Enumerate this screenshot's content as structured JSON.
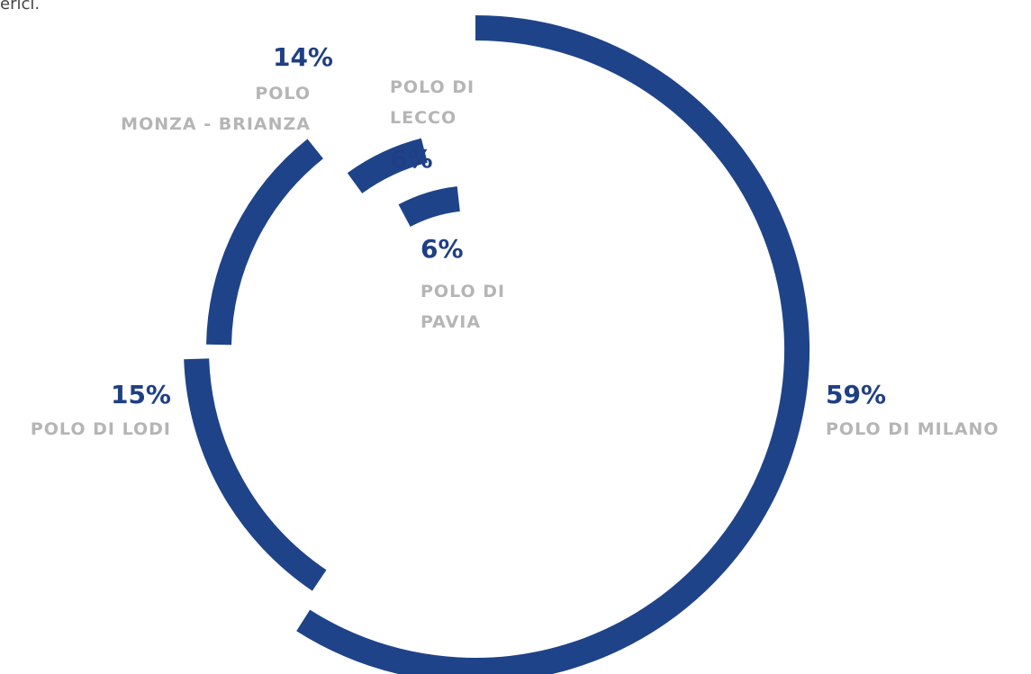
{
  "intro_text": "erici.",
  "chart_data": {
    "type": "radial-arc",
    "categories": [
      "POLO DI MILANO",
      "POLO DI LODI",
      "POLO\nMONZA - BRIANZA",
      "POLO DI\nLECCO",
      "POLO DI\nPAVIA"
    ],
    "values": [
      59,
      15,
      14,
      6,
      6
    ],
    "value_labels": [
      "59%",
      "15%",
      "14%",
      "6%",
      "6%"
    ],
    "color": "#1f4389"
  }
}
